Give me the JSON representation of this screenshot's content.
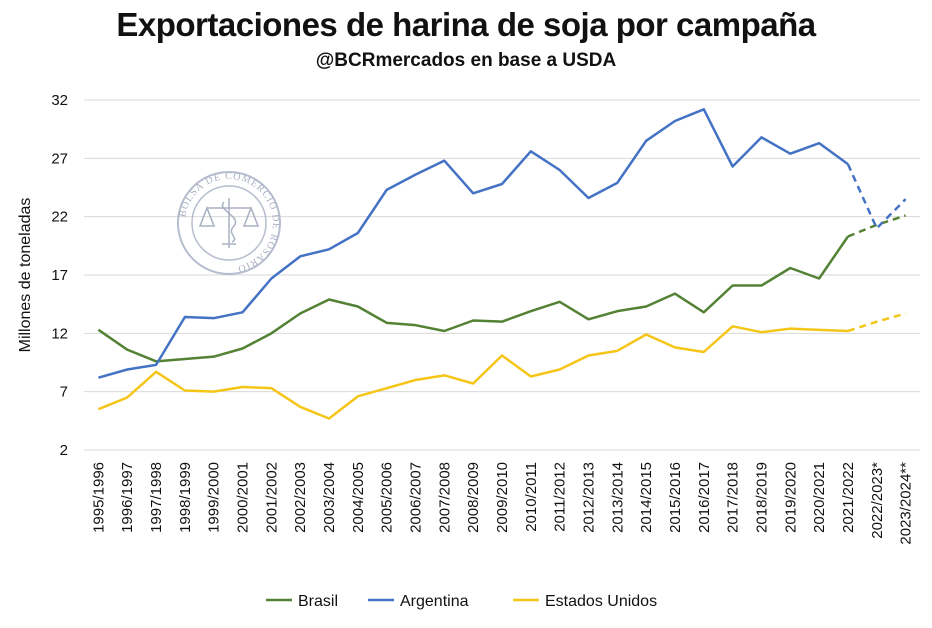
{
  "chart_data": {
    "type": "line",
    "title": "Exportaciones de harina de soja por campaña",
    "subtitle": "@BCRmercados en base a USDA",
    "xlabel": "",
    "ylabel": "Millones de toneladas",
    "ylim": [
      2,
      32
    ],
    "yticks": [
      2,
      7,
      12,
      17,
      22,
      27,
      32
    ],
    "grid": true,
    "legend_position": "bottom",
    "watermark_text": "BOLSA DE COMERCIO DE ROSARIO",
    "categories": [
      "1995/1996",
      "1996/1997",
      "1997/1998",
      "1998/1999",
      "1999/2000",
      "2000/2001",
      "2001/2002",
      "2002/2003",
      "2003/2004",
      "2004/2005",
      "2005/2006",
      "2006/2007",
      "2007/2008",
      "2008/2009",
      "2009/2010",
      "2010/2011",
      "2011/2012",
      "2012/2013",
      "2013/2014",
      "2014/2015",
      "2015/2016",
      "2016/2017",
      "2017/2018",
      "2018/2019",
      "2019/2020",
      "2020/2021",
      "2021/2022",
      "2022/2023*",
      "2023/2024**"
    ],
    "projected_from_index": 26,
    "series": [
      {
        "name": "Brasil",
        "color": "#548235",
        "values": [
          12.3,
          10.6,
          9.6,
          9.8,
          10.0,
          10.7,
          12.0,
          13.7,
          14.9,
          14.3,
          12.9,
          12.7,
          12.2,
          13.1,
          13.0,
          13.9,
          14.7,
          13.2,
          13.9,
          14.3,
          15.4,
          13.8,
          16.1,
          16.1,
          17.6,
          16.7,
          20.3,
          21.3,
          22.1
        ]
      },
      {
        "name": "Argentina",
        "color": "#4472C4",
        "values": [
          8.2,
          8.9,
          9.3,
          13.4,
          13.3,
          13.8,
          16.7,
          18.6,
          19.2,
          20.6,
          24.3,
          25.6,
          26.8,
          24.0,
          24.8,
          27.6,
          26.0,
          23.6,
          24.9,
          28.5,
          30.2,
          31.2,
          26.3,
          28.8,
          27.4,
          28.3,
          26.5,
          21.0,
          23.5
        ]
      },
      {
        "name": "Estados Unidos",
        "color": "#F5C518",
        "values": [
          5.5,
          6.5,
          8.7,
          7.1,
          7.0,
          7.4,
          7.3,
          5.7,
          4.7,
          6.6,
          7.3,
          8.0,
          8.4,
          7.7,
          10.1,
          8.3,
          8.9,
          10.1,
          10.5,
          11.9,
          10.8,
          10.4,
          12.6,
          12.1,
          12.4,
          12.3,
          12.2,
          13.0,
          13.7
        ]
      }
    ]
  }
}
